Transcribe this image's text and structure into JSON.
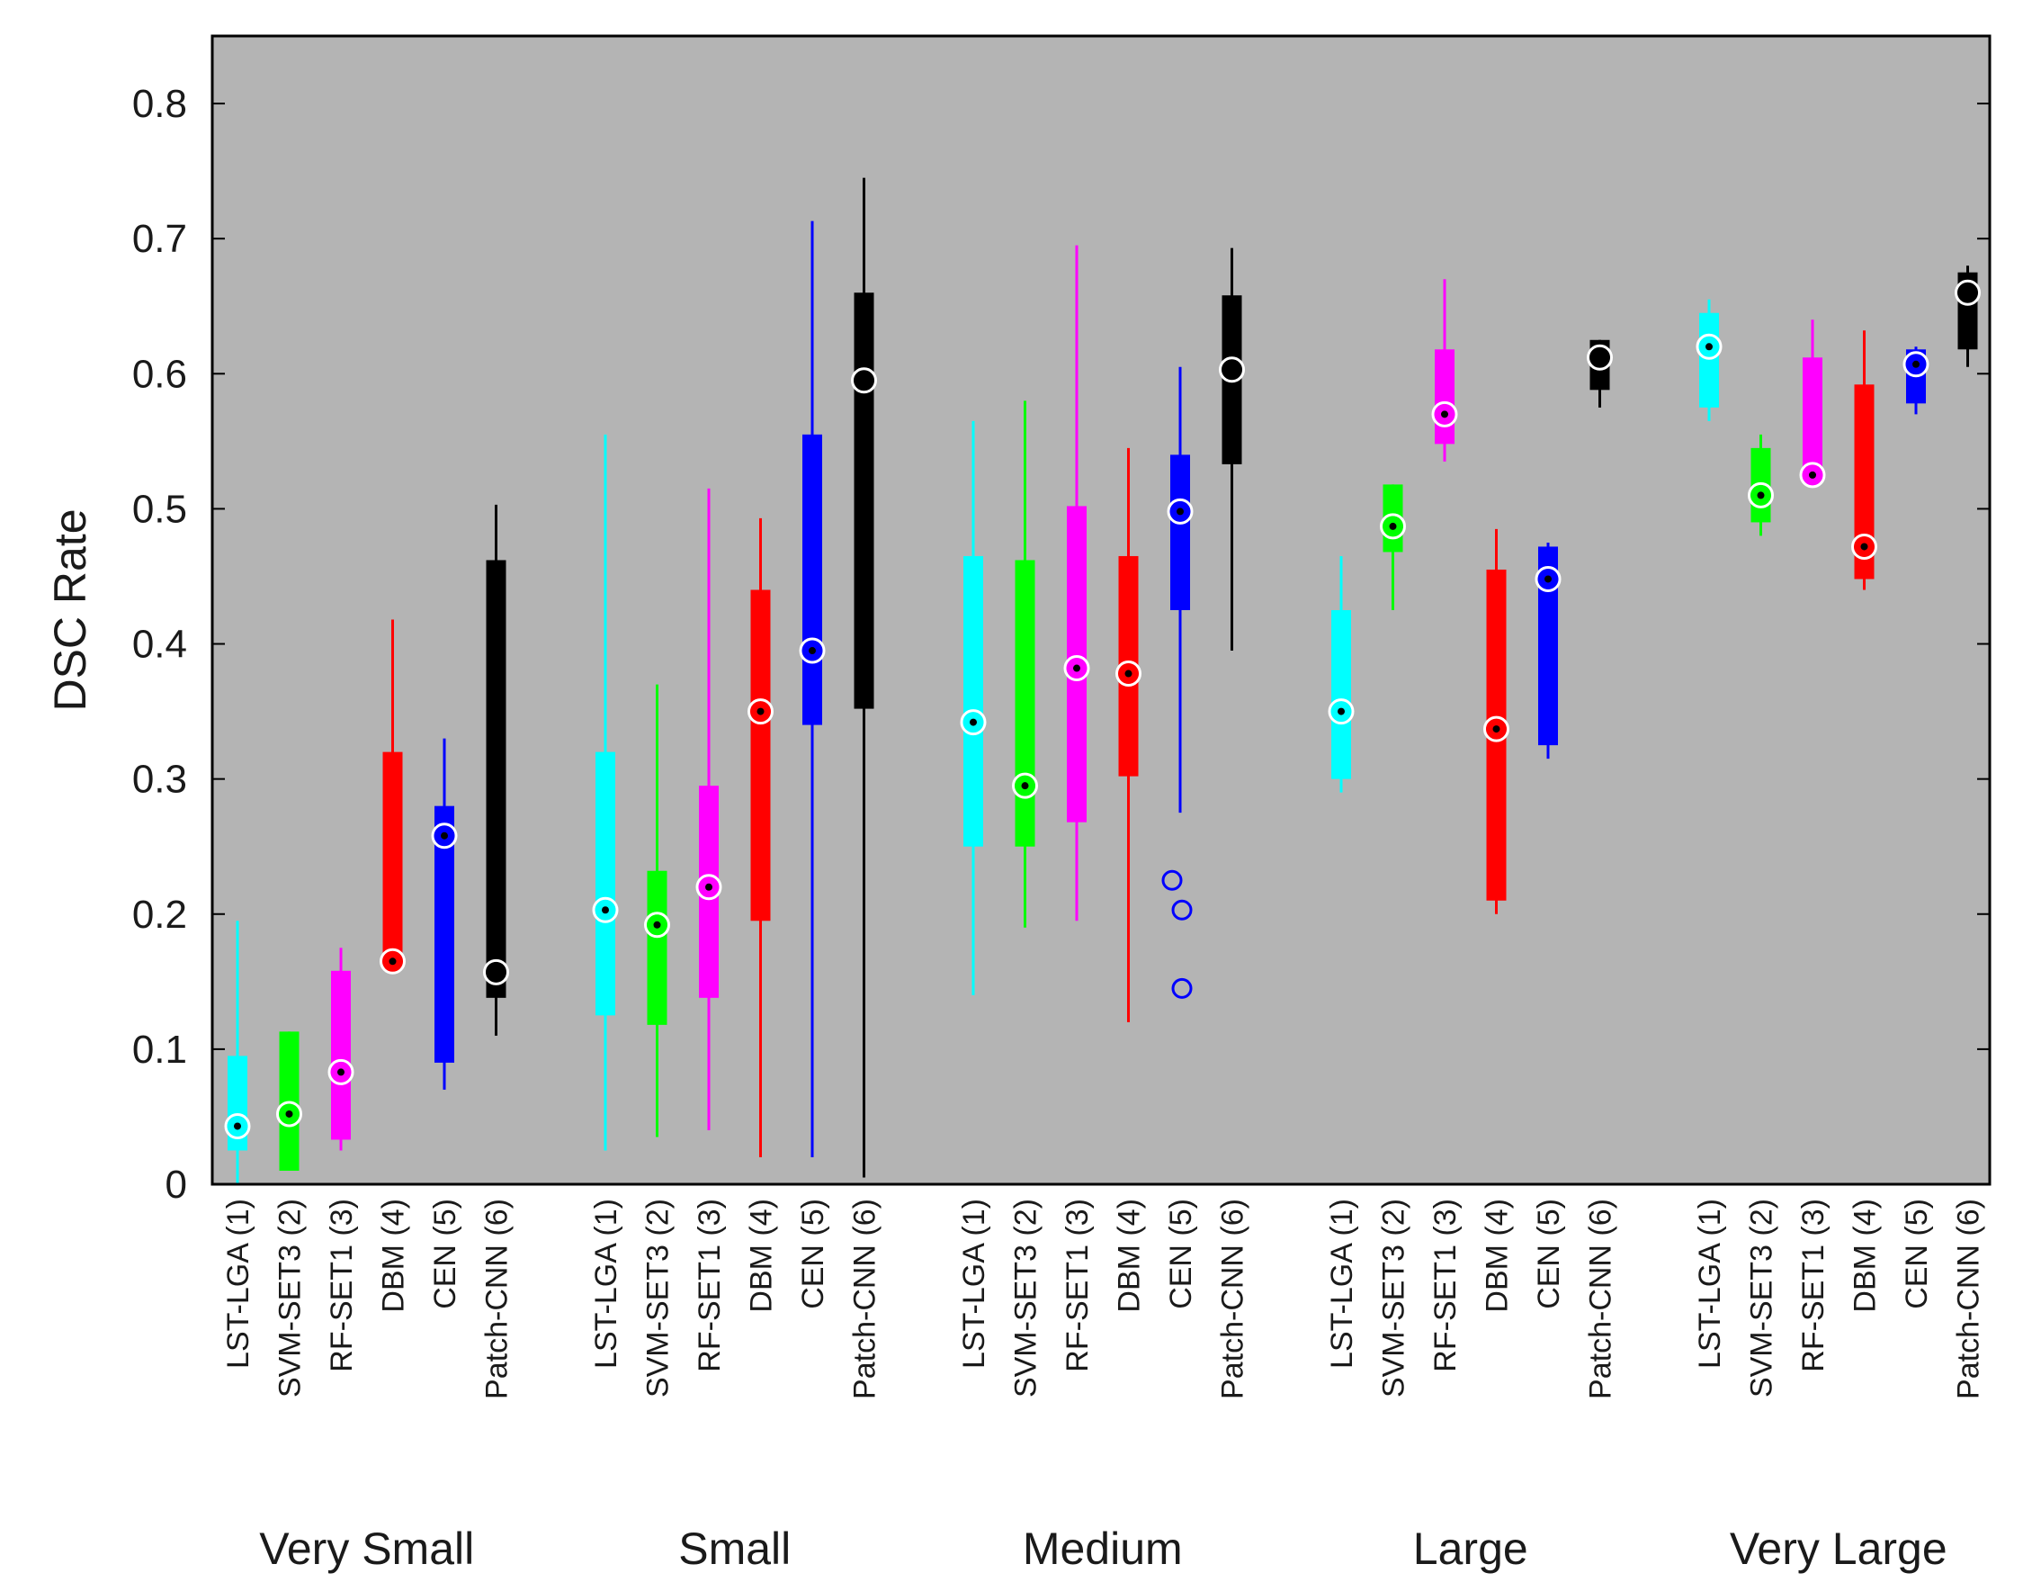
{
  "chart_data": {
    "type": "boxplot",
    "ylabel": "DSC Rate",
    "xlabel": "",
    "ylim": [
      0,
      0.85
    ],
    "yticks": [
      0,
      0.1,
      0.2,
      0.3,
      0.4,
      0.5,
      0.6,
      0.7,
      0.8
    ],
    "ytick_labels": [
      "0",
      "0.1",
      "0.2",
      "0.3",
      "0.4",
      "0.5",
      "0.6",
      "0.7",
      "0.8"
    ],
    "background": "#b4b4b4",
    "methods": [
      {
        "label": "LST-LGA (1)",
        "color": "#00ffff"
      },
      {
        "label": "SVM-SET3 (2)",
        "color": "#00ff00"
      },
      {
        "label": "RF-SET1 (3)",
        "color": "#ff00ff"
      },
      {
        "label": "DBM (4)",
        "color": "#ff0000"
      },
      {
        "label": "CEN (5)",
        "color": "#0000ff"
      },
      {
        "label": "Patch-CNN (6)",
        "color": "#000000"
      }
    ],
    "groups": [
      {
        "name": "Very Small",
        "boxes": [
          {
            "method": 0,
            "whisker_low": 0.0,
            "q1": 0.025,
            "median": 0.043,
            "q3": 0.095,
            "whisker_high": 0.195,
            "outliers": []
          },
          {
            "method": 1,
            "whisker_low": 0.01,
            "q1": 0.01,
            "median": 0.052,
            "q3": 0.113,
            "whisker_high": 0.113,
            "outliers": []
          },
          {
            "method": 2,
            "whisker_low": 0.025,
            "q1": 0.033,
            "median": 0.083,
            "q3": 0.158,
            "whisker_high": 0.175,
            "outliers": []
          },
          {
            "method": 3,
            "whisker_low": 0.165,
            "q1": 0.165,
            "median": 0.165,
            "q3": 0.32,
            "whisker_high": 0.418,
            "outliers": []
          },
          {
            "method": 4,
            "whisker_low": 0.07,
            "q1": 0.09,
            "median": 0.258,
            "q3": 0.28,
            "whisker_high": 0.33,
            "outliers": []
          },
          {
            "method": 5,
            "whisker_low": 0.11,
            "q1": 0.138,
            "median": 0.157,
            "q3": 0.462,
            "whisker_high": 0.503,
            "outliers": []
          }
        ]
      },
      {
        "name": "Small",
        "boxes": [
          {
            "method": 0,
            "whisker_low": 0.025,
            "q1": 0.125,
            "median": 0.203,
            "q3": 0.32,
            "whisker_high": 0.555,
            "outliers": []
          },
          {
            "method": 1,
            "whisker_low": 0.035,
            "q1": 0.118,
            "median": 0.192,
            "q3": 0.232,
            "whisker_high": 0.37,
            "outliers": []
          },
          {
            "method": 2,
            "whisker_low": 0.04,
            "q1": 0.138,
            "median": 0.22,
            "q3": 0.295,
            "whisker_high": 0.515,
            "outliers": []
          },
          {
            "method": 3,
            "whisker_low": 0.02,
            "q1": 0.195,
            "median": 0.35,
            "q3": 0.44,
            "whisker_high": 0.493,
            "outliers": []
          },
          {
            "method": 4,
            "whisker_low": 0.02,
            "q1": 0.34,
            "median": 0.395,
            "q3": 0.555,
            "whisker_high": 0.713,
            "outliers": []
          },
          {
            "method": 5,
            "whisker_low": 0.005,
            "q1": 0.352,
            "median": 0.595,
            "q3": 0.66,
            "whisker_high": 0.745,
            "outliers": []
          }
        ]
      },
      {
        "name": "Medium",
        "boxes": [
          {
            "method": 0,
            "whisker_low": 0.14,
            "q1": 0.25,
            "median": 0.342,
            "q3": 0.465,
            "whisker_high": 0.565,
            "outliers": []
          },
          {
            "method": 1,
            "whisker_low": 0.19,
            "q1": 0.25,
            "median": 0.295,
            "q3": 0.462,
            "whisker_high": 0.58,
            "outliers": []
          },
          {
            "method": 2,
            "whisker_low": 0.195,
            "q1": 0.268,
            "median": 0.382,
            "q3": 0.502,
            "whisker_high": 0.695,
            "outliers": []
          },
          {
            "method": 3,
            "whisker_low": 0.12,
            "q1": 0.302,
            "median": 0.378,
            "q3": 0.465,
            "whisker_high": 0.545,
            "outliers": []
          },
          {
            "method": 4,
            "whisker_low": 0.275,
            "q1": 0.425,
            "median": 0.498,
            "q3": 0.54,
            "whisker_high": 0.605,
            "outliers": [
              0.225,
              0.203,
              0.145
            ]
          },
          {
            "method": 5,
            "whisker_low": 0.395,
            "q1": 0.533,
            "median": 0.603,
            "q3": 0.658,
            "whisker_high": 0.693,
            "outliers": []
          }
        ]
      },
      {
        "name": "Large",
        "boxes": [
          {
            "method": 0,
            "whisker_low": 0.29,
            "q1": 0.3,
            "median": 0.35,
            "q3": 0.425,
            "whisker_high": 0.465,
            "outliers": []
          },
          {
            "method": 1,
            "whisker_low": 0.425,
            "q1": 0.468,
            "median": 0.487,
            "q3": 0.518,
            "whisker_high": 0.518,
            "outliers": []
          },
          {
            "method": 2,
            "whisker_low": 0.535,
            "q1": 0.548,
            "median": 0.57,
            "q3": 0.618,
            "whisker_high": 0.67,
            "outliers": []
          },
          {
            "method": 3,
            "whisker_low": 0.2,
            "q1": 0.21,
            "median": 0.337,
            "q3": 0.455,
            "whisker_high": 0.485,
            "outliers": []
          },
          {
            "method": 4,
            "whisker_low": 0.315,
            "q1": 0.325,
            "median": 0.448,
            "q3": 0.472,
            "whisker_high": 0.475,
            "outliers": []
          },
          {
            "method": 5,
            "whisker_low": 0.575,
            "q1": 0.588,
            "median": 0.612,
            "q3": 0.625,
            "whisker_high": 0.625,
            "outliers": []
          }
        ]
      },
      {
        "name": "Very Large",
        "boxes": [
          {
            "method": 0,
            "whisker_low": 0.565,
            "q1": 0.575,
            "median": 0.62,
            "q3": 0.645,
            "whisker_high": 0.655,
            "outliers": []
          },
          {
            "method": 1,
            "whisker_low": 0.48,
            "q1": 0.49,
            "median": 0.51,
            "q3": 0.545,
            "whisker_high": 0.555,
            "outliers": []
          },
          {
            "method": 2,
            "whisker_low": 0.525,
            "q1": 0.525,
            "median": 0.525,
            "q3": 0.612,
            "whisker_high": 0.64,
            "outliers": []
          },
          {
            "method": 3,
            "whisker_low": 0.44,
            "q1": 0.448,
            "median": 0.472,
            "q3": 0.592,
            "whisker_high": 0.632,
            "outliers": []
          },
          {
            "method": 4,
            "whisker_low": 0.57,
            "q1": 0.578,
            "median": 0.607,
            "q3": 0.618,
            "whisker_high": 0.62,
            "outliers": []
          },
          {
            "method": 5,
            "whisker_low": 0.605,
            "q1": 0.618,
            "median": 0.66,
            "q3": 0.675,
            "whisker_high": 0.68,
            "outliers": []
          }
        ]
      }
    ]
  }
}
